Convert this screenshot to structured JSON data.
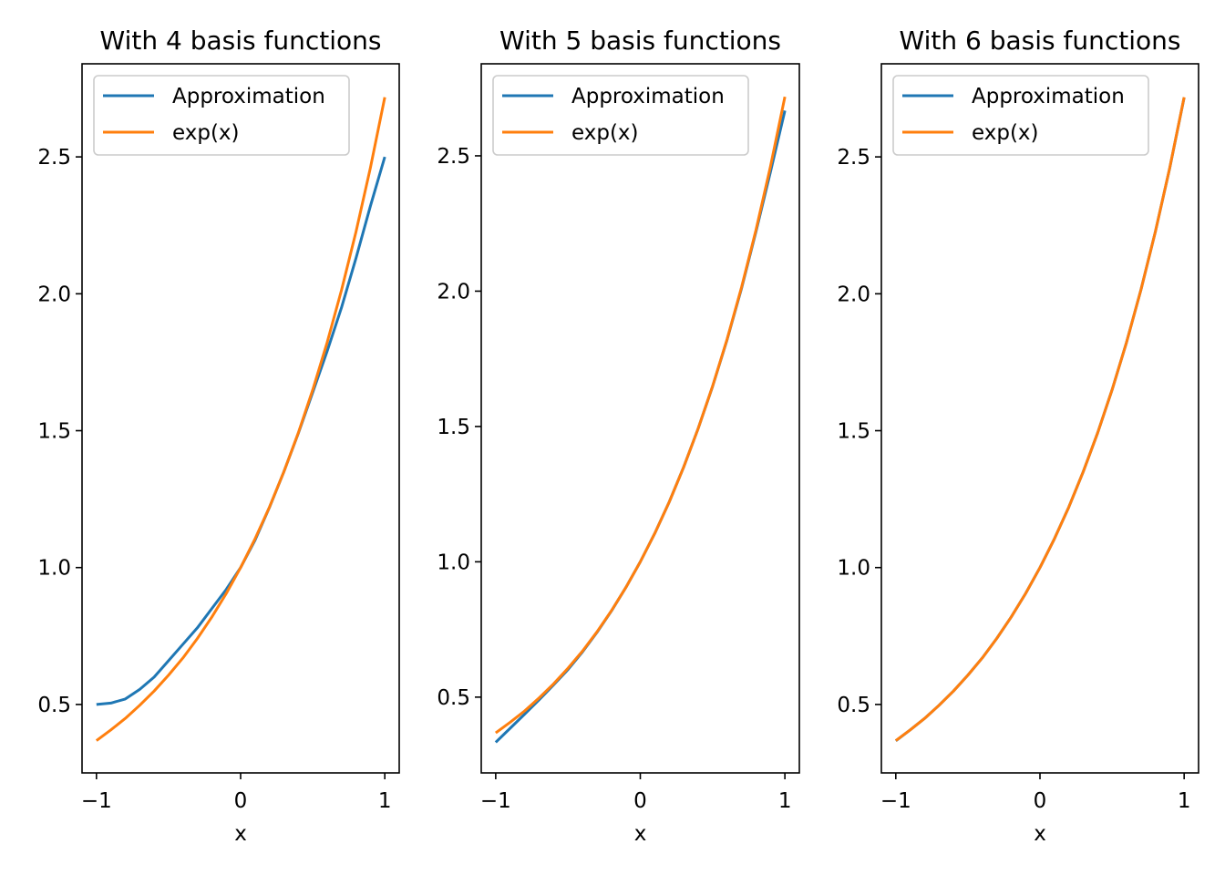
{
  "chart_data": [
    {
      "type": "line",
      "title": "With 4 basis functions",
      "xlabel": "x",
      "ylabel": "",
      "xlim": [
        -1.1,
        1.1
      ],
      "ylim": [
        0.25,
        2.84
      ],
      "xticks": [
        -1,
        0,
        1
      ],
      "xtick_labels": [
        "−1",
        "0",
        "1"
      ],
      "yticks": [
        0.5,
        1.0,
        1.5,
        2.0,
        2.5
      ],
      "ytick_labels": [
        "0.5",
        "1.0",
        "1.5",
        "2.0",
        "2.5"
      ],
      "grid": false,
      "legend": "top-left",
      "x": [
        -1.0,
        -0.9,
        -0.8,
        -0.7,
        -0.6,
        -0.5,
        -0.4,
        -0.3,
        -0.2,
        -0.1,
        0.0,
        0.1,
        0.2,
        0.3,
        0.4,
        0.5,
        0.6,
        0.7,
        0.8,
        0.9,
        1.0
      ],
      "series": [
        {
          "name": "Approximation",
          "color": "#1f77b4",
          "values": [
            0.5,
            0.505,
            0.52,
            0.555,
            0.6,
            0.66,
            0.72,
            0.78,
            0.85,
            0.92,
            1.0,
            1.1,
            1.22,
            1.35,
            1.49,
            1.64,
            1.79,
            1.95,
            2.13,
            2.32,
            2.5
          ]
        },
        {
          "name": "exp(x)",
          "color": "#ff7f0e",
          "values": [
            0.368,
            0.407,
            0.449,
            0.497,
            0.549,
            0.607,
            0.67,
            0.741,
            0.819,
            0.905,
            1.0,
            1.105,
            1.221,
            1.35,
            1.492,
            1.649,
            1.822,
            2.014,
            2.226,
            2.46,
            2.718
          ]
        }
      ]
    },
    {
      "type": "line",
      "title": "With 5 basis functions",
      "xlabel": "x",
      "ylabel": "",
      "xlim": [
        -1.1,
        1.1
      ],
      "ylim": [
        0.22,
        2.84
      ],
      "xticks": [
        -1,
        0,
        1
      ],
      "xtick_labels": [
        "−1",
        "0",
        "1"
      ],
      "yticks": [
        0.5,
        1.0,
        1.5,
        2.0,
        2.5
      ],
      "ytick_labels": [
        "0.5",
        "1.0",
        "1.5",
        "2.0",
        "2.5"
      ],
      "grid": false,
      "legend": "top-left",
      "x": [
        -1.0,
        -0.9,
        -0.8,
        -0.7,
        -0.6,
        -0.5,
        -0.4,
        -0.3,
        -0.2,
        -0.1,
        0.0,
        0.1,
        0.2,
        0.3,
        0.4,
        0.5,
        0.6,
        0.7,
        0.8,
        0.9,
        1.0
      ],
      "series": [
        {
          "name": "Approximation",
          "color": "#1f77b4",
          "values": [
            0.333,
            0.385,
            0.437,
            0.49,
            0.545,
            0.602,
            0.667,
            0.739,
            0.818,
            0.905,
            1.0,
            1.105,
            1.221,
            1.35,
            1.492,
            1.648,
            1.82,
            2.01,
            2.22,
            2.44,
            2.667
          ]
        },
        {
          "name": "exp(x)",
          "color": "#ff7f0e",
          "values": [
            0.368,
            0.407,
            0.449,
            0.497,
            0.549,
            0.607,
            0.67,
            0.741,
            0.819,
            0.905,
            1.0,
            1.105,
            1.221,
            1.35,
            1.492,
            1.649,
            1.822,
            2.014,
            2.226,
            2.46,
            2.718
          ]
        }
      ]
    },
    {
      "type": "line",
      "title": "With 6 basis functions",
      "xlabel": "x",
      "ylabel": "",
      "xlim": [
        -1.1,
        1.1
      ],
      "ylim": [
        0.25,
        2.84
      ],
      "xticks": [
        -1,
        0,
        1
      ],
      "xtick_labels": [
        "−1",
        "0",
        "1"
      ],
      "yticks": [
        0.5,
        1.0,
        1.5,
        2.0,
        2.5
      ],
      "ytick_labels": [
        "0.5",
        "1.0",
        "1.5",
        "2.0",
        "2.5"
      ],
      "grid": false,
      "legend": "top-left",
      "x": [
        -1.0,
        -0.9,
        -0.8,
        -0.7,
        -0.6,
        -0.5,
        -0.4,
        -0.3,
        -0.2,
        -0.1,
        0.0,
        0.1,
        0.2,
        0.3,
        0.4,
        0.5,
        0.6,
        0.7,
        0.8,
        0.9,
        1.0
      ],
      "series": [
        {
          "name": "Approximation",
          "color": "#1f77b4",
          "values": [
            0.367,
            0.407,
            0.449,
            0.497,
            0.549,
            0.607,
            0.67,
            0.741,
            0.819,
            0.905,
            1.0,
            1.105,
            1.221,
            1.35,
            1.492,
            1.649,
            1.822,
            2.014,
            2.226,
            2.459,
            2.717
          ]
        },
        {
          "name": "exp(x)",
          "color": "#ff7f0e",
          "values": [
            0.368,
            0.407,
            0.449,
            0.497,
            0.549,
            0.607,
            0.67,
            0.741,
            0.819,
            0.905,
            1.0,
            1.105,
            1.221,
            1.35,
            1.492,
            1.649,
            1.822,
            2.014,
            2.226,
            2.46,
            2.718
          ]
        }
      ]
    }
  ]
}
